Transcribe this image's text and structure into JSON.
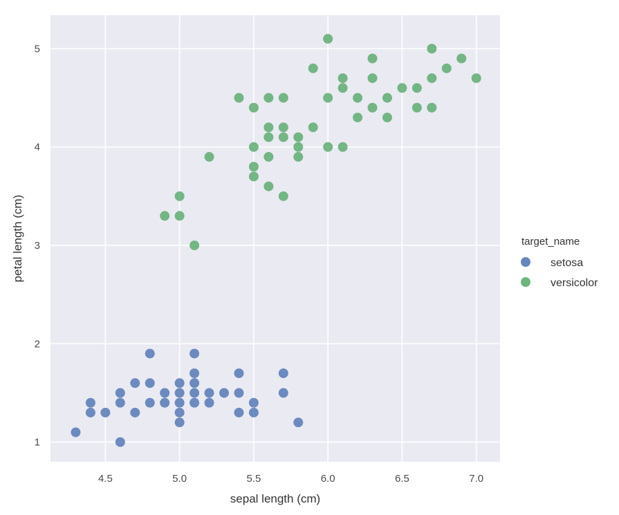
{
  "chart_data": {
    "type": "scatter",
    "title": "",
    "xlabel": "sepal length (cm)",
    "ylabel": "petal length (cm)",
    "xlim": [
      4.13,
      7.16
    ],
    "ylim": [
      0.8,
      5.34
    ],
    "xticks": [
      4.5,
      5.0,
      5.5,
      6.0,
      6.5,
      7.0
    ],
    "xtick_labels": [
      "4.5",
      "5.0",
      "5.5",
      "6.0",
      "6.5",
      "7.0"
    ],
    "yticks": [
      1,
      2,
      3,
      4,
      5
    ],
    "ytick_labels": [
      "1",
      "2",
      "3",
      "4",
      "5"
    ],
    "grid": true,
    "background": "#EAEAF2",
    "legend": {
      "title": "target_name",
      "position": "right",
      "entries": [
        "setosa",
        "versicolor"
      ]
    },
    "series": [
      {
        "name": "setosa",
        "color": "#4C72B0",
        "points": [
          [
            4.3,
            1.1
          ],
          [
            4.4,
            1.4
          ],
          [
            4.4,
            1.3
          ],
          [
            4.5,
            1.3
          ],
          [
            4.6,
            1.0
          ],
          [
            4.6,
            1.5
          ],
          [
            4.6,
            1.4
          ],
          [
            4.7,
            1.6
          ],
          [
            4.7,
            1.3
          ],
          [
            4.8,
            1.9
          ],
          [
            4.8,
            1.6
          ],
          [
            4.8,
            1.4
          ],
          [
            4.9,
            1.5
          ],
          [
            4.9,
            1.4
          ],
          [
            5.0,
            1.6
          ],
          [
            5.0,
            1.5
          ],
          [
            5.0,
            1.4
          ],
          [
            5.0,
            1.3
          ],
          [
            5.0,
            1.2
          ],
          [
            5.1,
            1.9
          ],
          [
            5.1,
            1.7
          ],
          [
            5.1,
            1.6
          ],
          [
            5.1,
            1.5
          ],
          [
            5.1,
            1.4
          ],
          [
            5.2,
            1.5
          ],
          [
            5.2,
            1.4
          ],
          [
            5.3,
            1.5
          ],
          [
            5.4,
            1.7
          ],
          [
            5.4,
            1.5
          ],
          [
            5.4,
            1.3
          ],
          [
            5.5,
            1.4
          ],
          [
            5.5,
            1.3
          ],
          [
            5.7,
            1.7
          ],
          [
            5.7,
            1.5
          ],
          [
            5.8,
            1.2
          ]
        ]
      },
      {
        "name": "versicolor",
        "color": "#55A868",
        "points": [
          [
            4.9,
            3.3
          ],
          [
            5.0,
            3.5
          ],
          [
            5.0,
            3.3
          ],
          [
            5.1,
            3.0
          ],
          [
            5.2,
            3.9
          ],
          [
            5.4,
            4.5
          ],
          [
            5.5,
            4.4
          ],
          [
            5.5,
            4.0
          ],
          [
            5.5,
            3.8
          ],
          [
            5.5,
            3.7
          ],
          [
            5.6,
            4.5
          ],
          [
            5.6,
            4.2
          ],
          [
            5.6,
            4.1
          ],
          [
            5.6,
            3.9
          ],
          [
            5.6,
            3.6
          ],
          [
            5.7,
            4.5
          ],
          [
            5.7,
            4.2
          ],
          [
            5.7,
            4.1
          ],
          [
            5.7,
            3.5
          ],
          [
            5.8,
            4.1
          ],
          [
            5.8,
            4.0
          ],
          [
            5.8,
            3.9
          ],
          [
            5.9,
            4.8
          ],
          [
            5.9,
            4.2
          ],
          [
            6.0,
            5.1
          ],
          [
            6.0,
            4.5
          ],
          [
            6.0,
            4.0
          ],
          [
            6.1,
            4.7
          ],
          [
            6.1,
            4.6
          ],
          [
            6.1,
            4.0
          ],
          [
            6.2,
            4.5
          ],
          [
            6.2,
            4.3
          ],
          [
            6.3,
            4.9
          ],
          [
            6.3,
            4.7
          ],
          [
            6.3,
            4.4
          ],
          [
            6.4,
            4.5
          ],
          [
            6.4,
            4.3
          ],
          [
            6.5,
            4.6
          ],
          [
            6.6,
            4.6
          ],
          [
            6.6,
            4.4
          ],
          [
            6.7,
            5.0
          ],
          [
            6.7,
            4.7
          ],
          [
            6.7,
            4.4
          ],
          [
            6.8,
            4.8
          ],
          [
            6.9,
            4.9
          ],
          [
            7.0,
            4.7
          ]
        ]
      }
    ]
  }
}
